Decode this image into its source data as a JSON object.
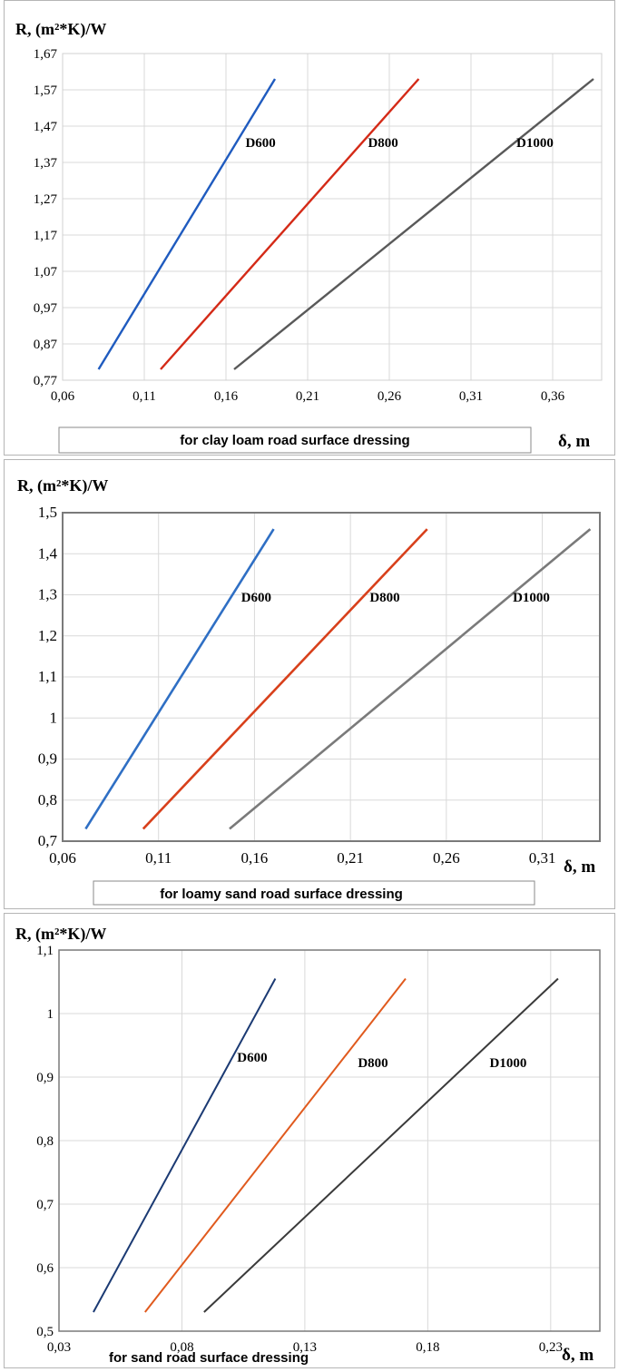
{
  "chart_data": [
    {
      "type": "line",
      "ylabel": "R, (m²*K)/W",
      "xlabel": "δ, m",
      "caption": "for clay loam road surface dressing",
      "x_ticks": [
        "0,06",
        "0,11",
        "0,16",
        "0,21",
        "0,26",
        "0,31",
        "0,36"
      ],
      "y_ticks": [
        "0,77",
        "0,87",
        "0,97",
        "1,07",
        "1,17",
        "1,27",
        "1,37",
        "1,47",
        "1,57",
        "1,67"
      ],
      "xlim": [
        0.06,
        0.39
      ],
      "ylim": [
        0.77,
        1.67
      ],
      "grid": true,
      "series": [
        {
          "name": "D600",
          "color": "#1f5bbf",
          "x": [
            0.082,
            0.19
          ],
          "y": [
            0.8,
            1.6
          ]
        },
        {
          "name": "D800",
          "color": "#d42a17",
          "x": [
            0.12,
            0.278
          ],
          "y": [
            0.8,
            1.6
          ]
        },
        {
          "name": "D1000",
          "color": "#595959",
          "x": [
            0.165,
            0.385
          ],
          "y": [
            0.8,
            1.6
          ]
        }
      ]
    },
    {
      "type": "line",
      "ylabel": "R, (m²*K)/W",
      "xlabel": "δ, m",
      "caption": "for loamy sand road surface dressing",
      "x_ticks": [
        "0,06",
        "0,11",
        "0,16",
        "0,21",
        "0,26",
        "0,31"
      ],
      "y_ticks": [
        "0,7",
        "0,8",
        "0,9",
        "1",
        "1,1",
        "1,2",
        "1,3",
        "1,4",
        "1,5"
      ],
      "xlim": [
        0.06,
        0.34
      ],
      "ylim": [
        0.7,
        1.5
      ],
      "grid": true,
      "series": [
        {
          "name": "D600",
          "color": "#2f6fc4",
          "x": [
            0.072,
            0.17
          ],
          "y": [
            0.73,
            1.46
          ]
        },
        {
          "name": "D800",
          "color": "#d8401b",
          "x": [
            0.102,
            0.25
          ],
          "y": [
            0.73,
            1.46
          ]
        },
        {
          "name": "D1000",
          "color": "#7a7a7a",
          "x": [
            0.147,
            0.335
          ],
          "y": [
            0.73,
            1.46
          ]
        }
      ]
    },
    {
      "type": "line",
      "ylabel": "R, (m²*K)/W",
      "xlabel": "δ, m",
      "caption": "for sand road surface dressing",
      "x_ticks": [
        "0,03",
        "0,08",
        "0,13",
        "0,18",
        "0,23"
      ],
      "y_ticks": [
        "0,5",
        "0,6",
        "0,7",
        "0,8",
        "0,9",
        "1",
        "1,1"
      ],
      "xlim": [
        0.03,
        0.25
      ],
      "ylim": [
        0.5,
        1.1
      ],
      "grid": true,
      "series": [
        {
          "name": "D600",
          "color": "#1b3a73",
          "x": [
            0.044,
            0.118
          ],
          "y": [
            0.53,
            1.055
          ]
        },
        {
          "name": "D800",
          "color": "#e05a1e",
          "x": [
            0.065,
            0.171
          ],
          "y": [
            0.53,
            1.055
          ]
        },
        {
          "name": "D1000",
          "color": "#3a3a3a",
          "x": [
            0.089,
            0.233
          ],
          "y": [
            0.53,
            1.055
          ]
        }
      ]
    }
  ]
}
